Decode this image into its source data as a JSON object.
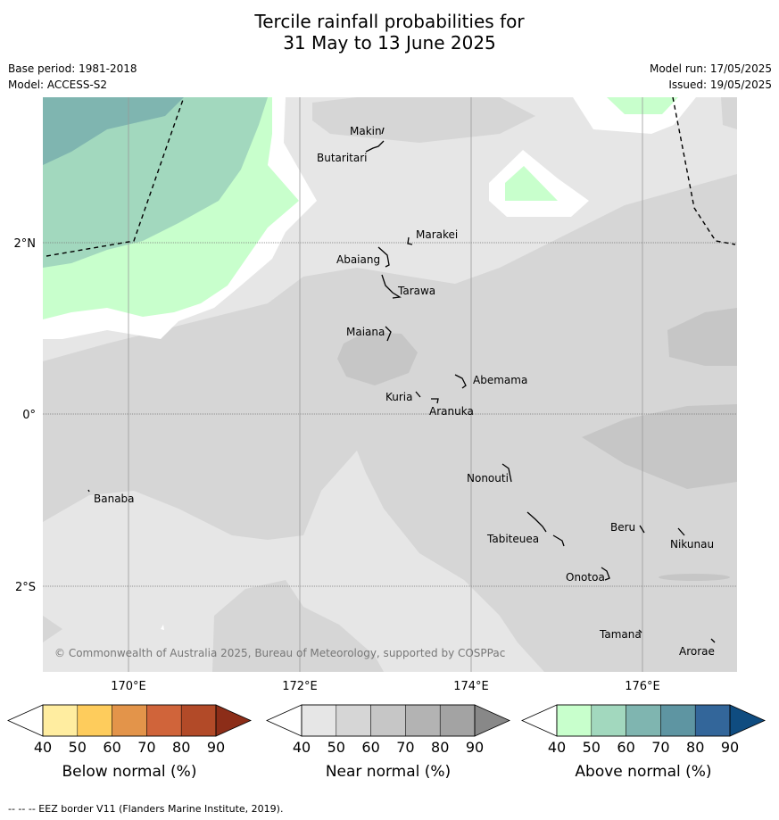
{
  "title_line1": "Tercile rainfall probabilities for",
  "title_line2": "31 May to 13 June 2025",
  "base_period": "Base period: 1981-2018",
  "model": "Model: ACCESS-S2",
  "model_run": "Model run: 17/05/2025",
  "issued": "Issued: 19/05/2025",
  "axes": {
    "lat_ticks": [
      "2°N",
      "0°",
      "2°S"
    ],
    "lon_ticks": [
      "170°E",
      "172°E",
      "174°E",
      "176°E"
    ]
  },
  "copyright": "© Commonwealth of Australia 2025, Bureau of Meteorology, supported by COSPPac",
  "places": [
    "Makin",
    "Butaritari",
    "Marakei",
    "Abaiang",
    "Tarawa",
    "Maiana",
    "Abemama",
    "Kuria",
    "Aranuka",
    "Nonouti",
    "Banaba",
    "Tabiteuea",
    "Beru",
    "Nikunau",
    "Onotoa",
    "Tamana",
    "Arorae"
  ],
  "colorbars": [
    {
      "label": "Below normal (%)",
      "ticks": [
        "40",
        "50",
        "60",
        "70",
        "80",
        "90"
      ],
      "colors": [
        "#ffffff",
        "#ffeda0",
        "#fecc5c",
        "#e3944a",
        "#d0643a",
        "#b24a28",
        "#8c2d18"
      ]
    },
    {
      "label": "Near normal (%)",
      "ticks": [
        "40",
        "50",
        "60",
        "70",
        "80",
        "90"
      ],
      "colors": [
        "#ffffff",
        "#e6e6e6",
        "#d6d6d6",
        "#c6c6c6",
        "#b3b3b3",
        "#a3a3a3",
        "#888888"
      ]
    },
    {
      "label": "Above normal (%)",
      "ticks": [
        "40",
        "50",
        "60",
        "70",
        "80",
        "90"
      ],
      "colors": [
        "#ffffff",
        "#c8ffcc",
        "#a2d8be",
        "#7fb5b0",
        "#5e95a2",
        "#33669a",
        "#0f4c80"
      ]
    }
  ],
  "footnote": "--  --  -- EEZ border V11 (Flanders Marine Institute, 2019)."
}
